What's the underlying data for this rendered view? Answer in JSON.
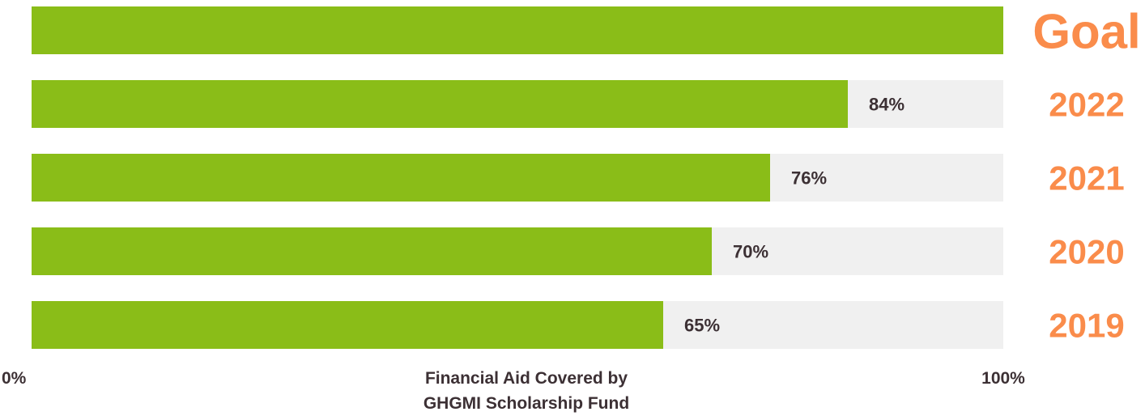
{
  "chart_data": {
    "type": "bar",
    "orientation": "horizontal",
    "categories": [
      "Goal",
      "2022",
      "2021",
      "2020",
      "2019"
    ],
    "values": [
      100,
      84,
      76,
      70,
      65
    ],
    "data_labels": [
      "",
      "84%",
      "76%",
      "70%",
      "65%"
    ],
    "xlim": [
      0,
      100
    ],
    "x_tick_labels": [
      "0%",
      "100%"
    ],
    "xlabel_lines": [
      "Financial Aid Covered by",
      "GHGMI Scholarship Fund"
    ],
    "legend": "none",
    "grid": false,
    "colors": {
      "bar": "#8abd18",
      "track": "#f0f0f0",
      "category_label": "#fa8c4b",
      "text": "#3c3034"
    }
  }
}
